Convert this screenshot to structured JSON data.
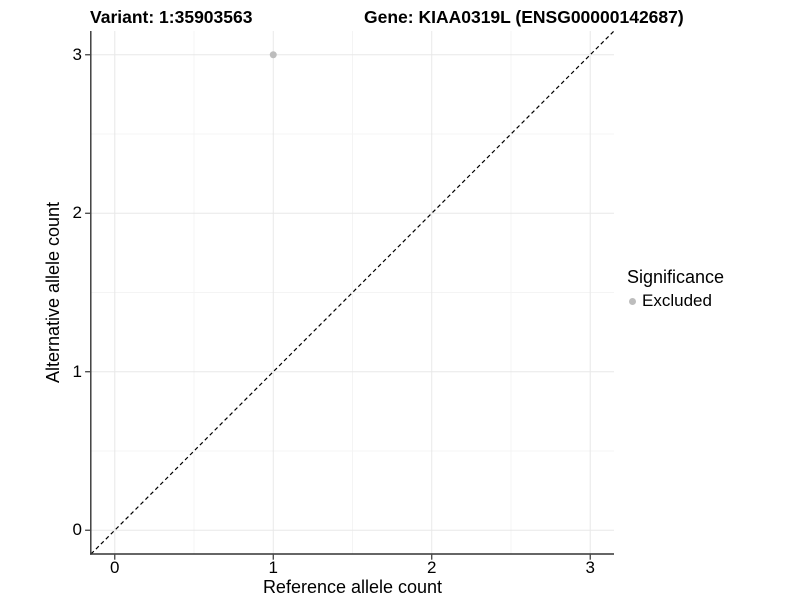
{
  "header": {
    "variant_title": "Variant: 1:35903563",
    "gene_title": "Gene: KIAA0319L (ENSG00000142687)"
  },
  "axes": {
    "x": {
      "label": "Reference allele count",
      "ticks": [
        0,
        1,
        2,
        3
      ],
      "minor_ticks": [
        0.5,
        1.5,
        2.5
      ]
    },
    "y": {
      "label": "Alternative allele count",
      "ticks": [
        0,
        1,
        2,
        3
      ],
      "minor_ticks": [
        0.5,
        1.5,
        2.5
      ]
    }
  },
  "legend": {
    "title": "Significance",
    "items": [
      {
        "label": "Excluded",
        "color": "#bdbdbd"
      }
    ]
  },
  "colors": {
    "grid_major": "#e8e8e8",
    "grid_minor": "#f4f4f4",
    "axis_line": "#333333",
    "diagonal_line": "#000000",
    "point": "#bdbdbd",
    "background": "#ffffff"
  },
  "chart_data": {
    "type": "scatter",
    "title": "Variant: 1:35903563   Gene: KIAA0319L (ENSG00000142687)",
    "xlabel": "Reference allele count",
    "ylabel": "Alternative allele count",
    "xlim": [
      -0.15,
      3.15
    ],
    "ylim": [
      -0.15,
      3.15
    ],
    "x_ticks": [
      0,
      1,
      2,
      3
    ],
    "y_ticks": [
      0,
      1,
      2,
      3
    ],
    "grid": "on",
    "legend_position": "right",
    "series": [
      {
        "name": "Excluded",
        "color": "#bdbdbd",
        "points": [
          {
            "x": 1,
            "y": 3
          }
        ]
      }
    ],
    "reference_line": {
      "type": "identity",
      "style": "dashed",
      "color": "#000000"
    }
  }
}
